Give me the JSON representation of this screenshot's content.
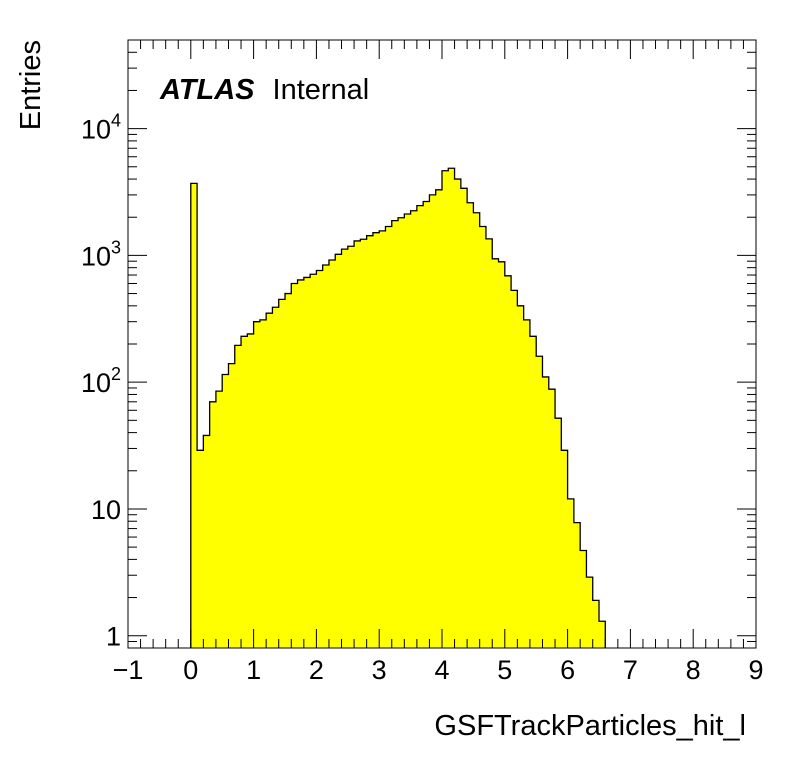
{
  "chart_data": {
    "type": "bar",
    "title": "",
    "xlabel": "GSFTrackParticles_hit_l",
    "ylabel": "Entries",
    "xlim": [
      -1,
      9
    ],
    "ylim": [
      0.8,
      50000
    ],
    "yscale": "log",
    "bin_width": 0.1,
    "x_tick_labels": [
      "−1",
      "0",
      "1",
      "2",
      "3",
      "4",
      "5",
      "6",
      "7",
      "8",
      "9"
    ],
    "y_tick_labels": [
      {
        "value": 1,
        "base": "1",
        "exp": ""
      },
      {
        "value": 10,
        "base": "10",
        "exp": ""
      },
      {
        "value": 100,
        "base": "10",
        "exp": "2"
      },
      {
        "value": 1000,
        "base": "10",
        "exp": "3"
      },
      {
        "value": 10000,
        "base": "10",
        "exp": "4"
      }
    ],
    "series": [
      {
        "fill": "#ffff00",
        "stroke": "#000000",
        "bin_lows": [
          0.0,
          0.1,
          0.2,
          0.3,
          0.4,
          0.5,
          0.6,
          0.7,
          0.8,
          0.9,
          1.0,
          1.1,
          1.2,
          1.3,
          1.4,
          1.5,
          1.6,
          1.7,
          1.8,
          1.9,
          2.0,
          2.1,
          2.2,
          2.3,
          2.4,
          2.5,
          2.6,
          2.7,
          2.8,
          2.9,
          3.0,
          3.1,
          3.2,
          3.3,
          3.4,
          3.5,
          3.6,
          3.7,
          3.8,
          3.9,
          4.0,
          4.1,
          4.2,
          4.3,
          4.4,
          4.5,
          4.6,
          4.7,
          4.8,
          4.9,
          5.0,
          5.1,
          5.2,
          5.3,
          5.4,
          5.5,
          5.6,
          5.7,
          5.8,
          5.9,
          6.0,
          6.1,
          6.2,
          6.3,
          6.4,
          6.5
        ],
        "values": [
          3700,
          29,
          38,
          70,
          85,
          115,
          140,
          195,
          230,
          240,
          300,
          310,
          350,
          390,
          450,
          500,
          600,
          640,
          670,
          710,
          760,
          840,
          920,
          1020,
          1120,
          1180,
          1300,
          1340,
          1430,
          1510,
          1560,
          1690,
          1880,
          1980,
          2120,
          2250,
          2470,
          2660,
          3000,
          3290,
          4650,
          4870,
          4000,
          3380,
          2600,
          2170,
          1690,
          1350,
          940,
          890,
          690,
          530,
          400,
          310,
          230,
          160,
          110,
          88,
          52,
          29,
          12,
          7.8,
          4.7,
          2.9,
          1.9,
          1.3
        ]
      }
    ],
    "annotations": {
      "experiment": "ATLAS",
      "status": "Internal"
    }
  }
}
